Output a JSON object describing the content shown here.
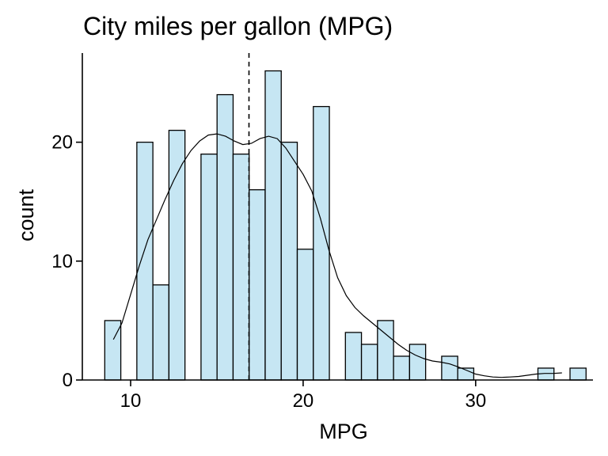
{
  "chart_data": {
    "type": "bar",
    "subtype": "histogram",
    "title": "City miles per gallon (MPG)",
    "xlabel": "MPG",
    "ylabel": "count",
    "xlim": [
      7.2,
      36.8
    ],
    "ylim": [
      0,
      27.5
    ],
    "x_ticks": [
      10,
      20,
      30
    ],
    "y_ticks": [
      0,
      10,
      20
    ],
    "bin_width": 0.93,
    "bins": [
      {
        "x0": 8.5,
        "count": 5
      },
      {
        "x0": 10.36,
        "count": 20
      },
      {
        "x0": 11.29,
        "count": 8
      },
      {
        "x0": 12.22,
        "count": 21
      },
      {
        "x0": 14.08,
        "count": 19
      },
      {
        "x0": 15.01,
        "count": 24
      },
      {
        "x0": 15.94,
        "count": 19
      },
      {
        "x0": 16.87,
        "count": 16
      },
      {
        "x0": 17.8,
        "count": 26
      },
      {
        "x0": 18.73,
        "count": 20
      },
      {
        "x0": 19.66,
        "count": 11
      },
      {
        "x0": 20.59,
        "count": 23
      },
      {
        "x0": 22.45,
        "count": 4
      },
      {
        "x0": 23.38,
        "count": 3
      },
      {
        "x0": 24.31,
        "count": 5
      },
      {
        "x0": 25.24,
        "count": 2
      },
      {
        "x0": 26.17,
        "count": 3
      },
      {
        "x0": 28.03,
        "count": 2
      },
      {
        "x0": 28.96,
        "count": 1
      },
      {
        "x0": 33.61,
        "count": 1
      },
      {
        "x0": 35.47,
        "count": 1
      }
    ],
    "mean_line": {
      "x": 16.86,
      "style": "dashed"
    },
    "density_curve": {
      "x": [
        9,
        9.5,
        10,
        10.5,
        11,
        11.5,
        12,
        12.5,
        13,
        13.5,
        14,
        14.5,
        15,
        15.5,
        16,
        16.5,
        17,
        17.5,
        18,
        18.5,
        19,
        19.5,
        20,
        20.5,
        21,
        21.5,
        22,
        22.5,
        23,
        23.5,
        24,
        24.5,
        25,
        25.5,
        26,
        26.5,
        27,
        27.5,
        28,
        28.5,
        29,
        29.5,
        30,
        30.5,
        31,
        31.5,
        32,
        32.5,
        33,
        33.5,
        34,
        34.5,
        35
      ],
      "y": [
        3.4,
        4.8,
        7.2,
        9.6,
        11.8,
        13.5,
        15.2,
        16.8,
        18.2,
        19.3,
        20.1,
        20.6,
        20.7,
        20.5,
        20.1,
        19.8,
        19.9,
        20.3,
        20.5,
        20.3,
        19.5,
        18.4,
        17.3,
        15.9,
        13.6,
        10.9,
        8.6,
        7.1,
        6.1,
        5.4,
        4.8,
        4.2,
        3.6,
        3.0,
        2.5,
        2.1,
        1.8,
        1.6,
        1.5,
        1.35,
        1.1,
        0.8,
        0.5,
        0.35,
        0.25,
        0.22,
        0.25,
        0.3,
        0.4,
        0.5,
        0.55,
        0.55,
        0.6
      ]
    },
    "grid": false,
    "legend": "none"
  }
}
